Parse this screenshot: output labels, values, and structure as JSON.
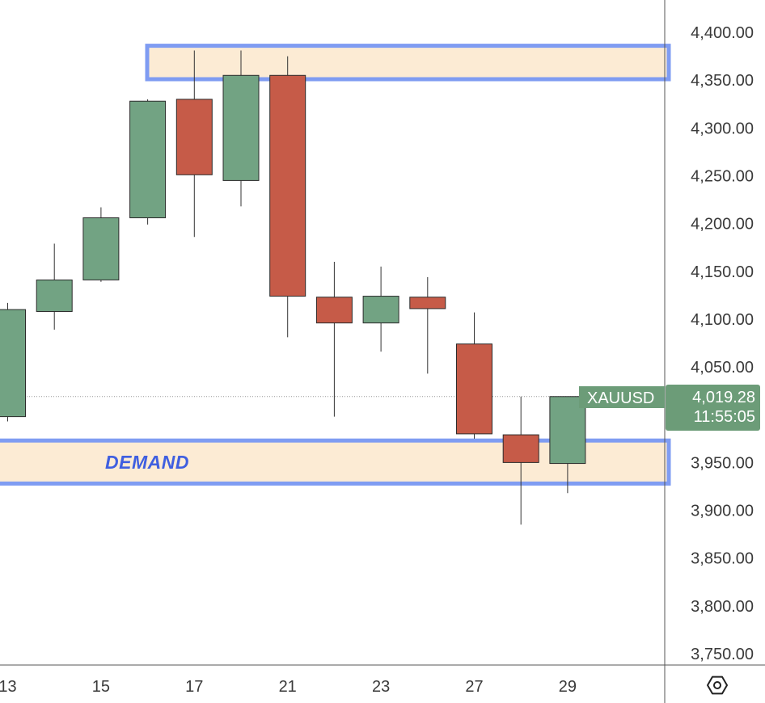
{
  "chart_data": {
    "type": "candlestick",
    "symbol": "XAUUSD",
    "last_price": "4,019.28",
    "countdown": "11:55:05",
    "x_tick_labels": [
      "13",
      "15",
      "17",
      "21",
      "23",
      "27",
      "29"
    ],
    "y_ticks": [
      3750,
      3800,
      3850,
      3900,
      3950,
      4000,
      4050,
      4100,
      4150,
      4200,
      4250,
      4300,
      4350,
      4400
    ],
    "y_tick_labels": [
      "3,750.00",
      "3,800.00",
      "3,850.00",
      "3,900.00",
      "3,950.00",
      "4,000.00",
      "4,050.00",
      "4,100.00",
      "4,150.00",
      "4,200.00",
      "4,250.00",
      "4,300.00",
      "4,350.00",
      "4,400.00"
    ],
    "ylim": [
      3730,
      4420
    ],
    "candles": [
      {
        "open": 3998,
        "high": 4117,
        "low": 3993,
        "close": 4110
      },
      {
        "open": 4108,
        "high": 4179,
        "low": 4089,
        "close": 4141
      },
      {
        "open": 4141,
        "high": 4217,
        "low": 4139,
        "close": 4206
      },
      {
        "open": 4206,
        "high": 4330,
        "low": 4199,
        "close": 4328
      },
      {
        "open": 4330,
        "high": 4381,
        "low": 4186,
        "close": 4251
      },
      {
        "open": 4245,
        "high": 4381,
        "low": 4218,
        "close": 4355
      },
      {
        "open": 4355,
        "high": 4375,
        "low": 4081,
        "close": 4124
      },
      {
        "open": 4123,
        "high": 4160,
        "low": 3998,
        "close": 4096
      },
      {
        "open": 4096,
        "high": 4155,
        "low": 4066,
        "close": 4124
      },
      {
        "open": 4123,
        "high": 4144,
        "low": 4043,
        "close": 4111
      },
      {
        "open": 4074,
        "high": 4107,
        "low": 3975,
        "close": 3980
      },
      {
        "open": 3979,
        "high": 4019,
        "low": 3885,
        "close": 3950
      },
      {
        "open": 3949,
        "high": 4019,
        "low": 3918,
        "close": 4019
      }
    ],
    "zones": [
      {
        "label": "",
        "top": 4386,
        "bottom": 4351
      },
      {
        "label": "DEMAND",
        "top": 3973,
        "bottom": 3928
      }
    ],
    "colors": {
      "up": "#72a383",
      "down": "#c65b48",
      "zone_fill": "#fcebd4",
      "zone_border": "#7f9cf2",
      "tag": "#6c9c78",
      "label": "#3f5fe0"
    },
    "settings_icon": "hexagon-gear-icon"
  }
}
